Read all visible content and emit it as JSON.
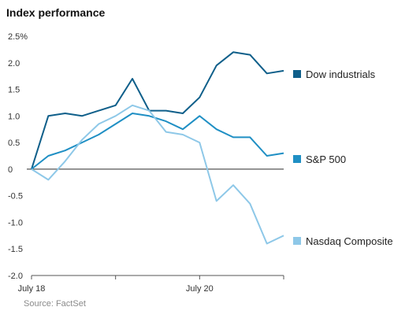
{
  "chart_data": {
    "type": "line",
    "title": "Index performance",
    "source": "Source: FactSet",
    "xlabel": "",
    "ylabel": "",
    "ylim": [
      -2.0,
      2.5
    ],
    "yticks": [
      "2.5%",
      "2.0",
      "1.5",
      "1.0",
      "0.5",
      "0",
      "-0.5",
      "-1.0",
      "-1.5",
      "-2.0"
    ],
    "xticks": [
      {
        "label": "July 18",
        "x": 0
      },
      {
        "label": "",
        "x": 1
      },
      {
        "label": "July 20",
        "x": 2
      },
      {
        "label": "",
        "x": 3
      }
    ],
    "x": [
      0,
      0.2,
      0.4,
      0.6,
      0.8,
      1.0,
      1.2,
      1.4,
      1.6,
      1.8,
      2.0,
      2.2,
      2.4,
      2.6,
      2.8,
      3.0
    ],
    "series": [
      {
        "name": "Dow industrials",
        "color": "#0f5f8a",
        "values": [
          0.0,
          1.0,
          1.05,
          1.0,
          1.1,
          1.2,
          1.7,
          1.1,
          1.1,
          1.05,
          1.35,
          1.95,
          2.2,
          2.15,
          1.8,
          1.85
        ]
      },
      {
        "name": "S&P 500",
        "color": "#1f8fc4",
        "values": [
          0.0,
          0.25,
          0.35,
          0.5,
          0.65,
          0.85,
          1.05,
          1.0,
          0.9,
          0.75,
          1.0,
          0.75,
          0.6,
          0.6,
          0.25,
          0.3
        ]
      },
      {
        "name": "Nasdaq Composite",
        "color": "#8ec8e8",
        "values": [
          0.0,
          -0.2,
          0.15,
          0.55,
          0.85,
          1.0,
          1.2,
          1.1,
          0.7,
          0.65,
          0.5,
          -0.6,
          -0.3,
          -0.65,
          -1.4,
          -1.25
        ]
      }
    ]
  }
}
